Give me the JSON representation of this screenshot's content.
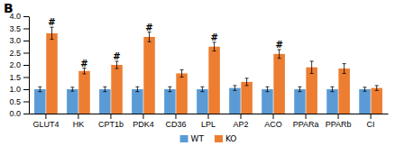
{
  "chart_data": {
    "type": "bar",
    "title": "B",
    "categories": [
      "GLUT4",
      "HK",
      "CPT1b",
      "PDK4",
      "CD36",
      "LPL",
      "AP2",
      "ACO",
      "PPARa",
      "PPARb",
      "CI"
    ],
    "series": [
      {
        "name": "WT",
        "color": "#5b9bd5",
        "values": [
          1.0,
          1.0,
          1.0,
          1.0,
          1.0,
          1.0,
          1.05,
          1.0,
          1.0,
          1.0,
          1.0
        ],
        "errors": [
          0.1,
          0.08,
          0.1,
          0.1,
          0.1,
          0.1,
          0.1,
          0.1,
          0.1,
          0.1,
          0.08
        ]
      },
      {
        "name": "KO",
        "color": "#ed7d31",
        "values": [
          3.3,
          1.75,
          2.0,
          3.15,
          1.65,
          2.75,
          1.3,
          2.45,
          1.9,
          1.85,
          1.05
        ],
        "errors": [
          0.25,
          0.12,
          0.15,
          0.2,
          0.15,
          0.18,
          0.15,
          0.18,
          0.25,
          0.2,
          0.1
        ]
      }
    ],
    "annotations": [
      {
        "text": "#",
        "category": "GLUT4",
        "series": "KO"
      },
      {
        "text": "#",
        "category": "HK",
        "series": "KO"
      },
      {
        "text": "#",
        "category": "CPT1b",
        "series": "KO"
      },
      {
        "text": "#",
        "category": "PDK4",
        "series": "KO"
      },
      {
        "text": "#",
        "category": "LPL",
        "series": "KO"
      },
      {
        "text": "#",
        "category": "ACO",
        "series": "KO"
      }
    ],
    "ylim": [
      0,
      4
    ],
    "yticks": [
      {
        "value": 0,
        "label": "0.0"
      },
      0.5,
      {
        "value": 1,
        "label": "1.0"
      },
      1.5,
      {
        "value": 2,
        "label": "2.0"
      },
      2.5,
      {
        "value": 3,
        "label": "3.0"
      },
      3.5,
      {
        "value": 4,
        "label": "4.0"
      }
    ],
    "grid": false,
    "legend": "bottom"
  }
}
